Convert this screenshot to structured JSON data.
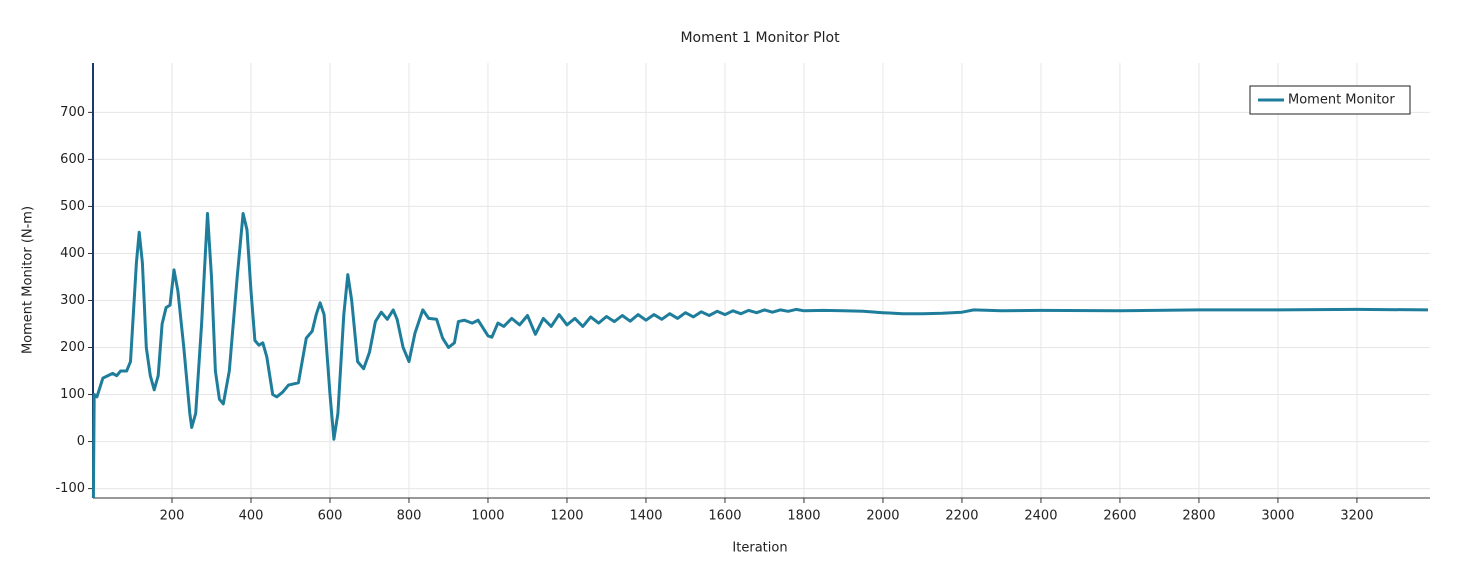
{
  "chart_data": {
    "type": "line",
    "title": "Moment 1 Monitor Plot",
    "x_label": "Iteration",
    "y_label": "Moment Monitor (N-m)",
    "xlim": [
      0,
      3385
    ],
    "ylim": [
      -120,
      805
    ],
    "xticks": [
      200,
      400,
      600,
      800,
      1000,
      1200,
      1400,
      1600,
      1800,
      2000,
      2200,
      2400,
      2600,
      2800,
      3000,
      3200
    ],
    "yticks": [
      -100,
      0,
      100,
      200,
      300,
      400,
      500,
      600,
      700
    ],
    "grid": true,
    "legend": "upper right",
    "x": [
      1,
      3,
      10,
      25,
      50,
      60,
      70,
      85,
      95,
      110,
      117,
      125,
      135,
      145,
      155,
      165,
      175,
      185,
      195,
      205,
      215,
      230,
      245,
      250,
      260,
      275,
      290,
      300,
      310,
      320,
      330,
      345,
      365,
      380,
      390,
      400,
      410,
      420,
      430,
      440,
      455,
      465,
      480,
      495,
      520,
      540,
      555,
      565,
      575,
      585,
      600,
      610,
      620,
      635,
      645,
      655,
      670,
      685,
      700,
      715,
      730,
      745,
      760,
      770,
      785,
      800,
      815,
      835,
      850,
      870,
      885,
      900,
      915,
      925,
      940,
      960,
      975,
      1000,
      1010,
      1025,
      1040,
      1060,
      1080,
      1100,
      1120,
      1140,
      1160,
      1180,
      1200,
      1220,
      1240,
      1260,
      1280,
      1300,
      1320,
      1340,
      1360,
      1380,
      1400,
      1420,
      1440,
      1460,
      1480,
      1500,
      1520,
      1540,
      1560,
      1580,
      1600,
      1620,
      1640,
      1660,
      1680,
      1700,
      1720,
      1740,
      1760,
      1780,
      1800,
      1850,
      1900,
      1950,
      2000,
      2050,
      2100,
      2150,
      2200,
      2230,
      2300,
      2400,
      2600,
      2800,
      3000,
      3200,
      3380
    ],
    "series": [
      {
        "name": "Moment Monitor",
        "color": "#1f7d9c",
        "values": [
          -120,
          100,
          95,
          135,
          145,
          140,
          150,
          150,
          170,
          380,
          445,
          380,
          200,
          140,
          110,
          140,
          250,
          285,
          290,
          365,
          320,
          200,
          60,
          30,
          60,
          250,
          485,
          350,
          150,
          90,
          80,
          150,
          350,
          485,
          450,
          320,
          215,
          205,
          210,
          180,
          100,
          95,
          105,
          120,
          125,
          220,
          235,
          270,
          295,
          270,
          100,
          5,
          60,
          270,
          355,
          300,
          170,
          155,
          190,
          255,
          275,
          260,
          280,
          260,
          200,
          170,
          230,
          280,
          262,
          260,
          220,
          200,
          210,
          255,
          258,
          252,
          258,
          225,
          222,
          252,
          245,
          262,
          248,
          268,
          228,
          262,
          245,
          270,
          248,
          262,
          245,
          265,
          252,
          266,
          255,
          268,
          256,
          270,
          258,
          270,
          260,
          272,
          262,
          274,
          265,
          276,
          268,
          277,
          270,
          278,
          272,
          279,
          274,
          280,
          275,
          280,
          277,
          281,
          278,
          279,
          278,
          277,
          274,
          272,
          272,
          273,
          275,
          280,
          278,
          279,
          278,
          280,
          280,
          281,
          280
        ]
      }
    ]
  }
}
